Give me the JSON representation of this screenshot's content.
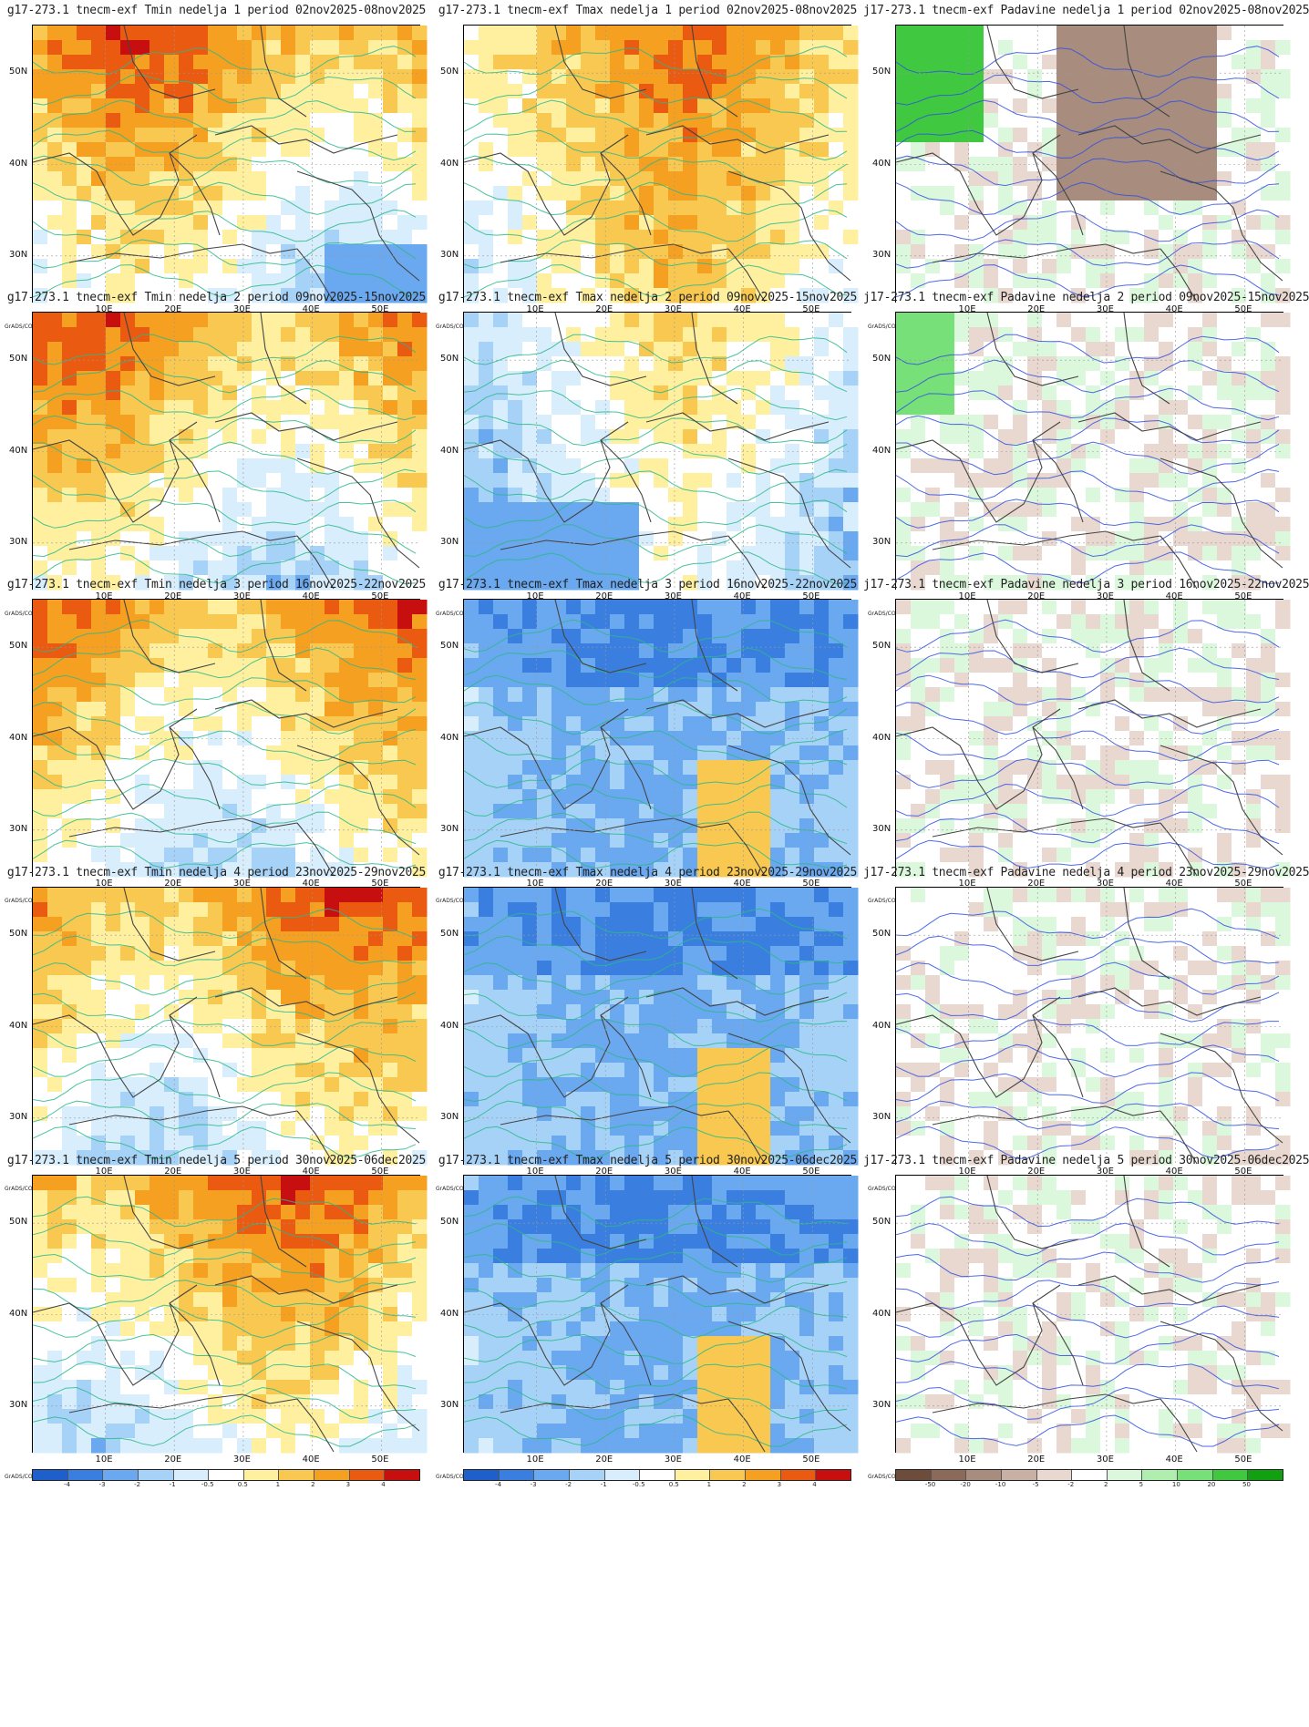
{
  "row_titles": {
    "tmin": [
      "g17-273.1 tnecm-exf Tmin nedelja 1 period 02nov2025-08nov2025",
      "g17-273.1 tnecm-exf Tmin nedelja 2 period 09nov2025-15nov2025",
      "g17-273.1 tnecm-exf Tmin nedelja 3 period 16nov2025-22nov2025",
      "g17-273.1 tnecm-exf Tmin nedelja 4 period 23nov2025-29nov2025",
      "g17-273.1 tnecm-exf Tmin nedelja 5 period 30nov2025-06dec2025"
    ],
    "tmax": [
      "g17-273.1 tnecm-exf Tmax nedelja 1 period 02nov2025-08nov2025",
      "g17-273.1 tnecm-exf Tmax nedelja 2 period 09nov2025-15nov2025",
      "g17-273.1 tnecm-exf Tmax nedelja 3 period 16nov2025-22nov2025",
      "g17-273.1 tnecm-exf Tmax nedelja 4 period 23nov2025-29nov2025",
      "g17-273.1 tnecm-exf Tmax nedelja 5 period 30nov2025-06dec2025"
    ],
    "precip": [
      "j17-273.1 tnecm-exf Padavine nedelja 1 period 02nov2025-08nov2025",
      "j17-273.1 tnecm-exf Padavine nedelja 2 period 09nov2025-15nov2025",
      "j17-273.1 tnecm-exf Padavine nedelja 3 period 16nov2025-22nov2025",
      "j17-273.1 tnecm-exf Padavine nedelja 4 period 23nov2025-29nov2025",
      "j17-273.1 tnecm-exf Padavine nedelja 5 period 30nov2025-06dec2025"
    ]
  },
  "axes": {
    "lon_labels": [
      "10E",
      "20E",
      "30E",
      "40E",
      "50E"
    ],
    "lat_labels": [
      "50N",
      "40N",
      "30N"
    ]
  },
  "credit": "GrADS/COLA",
  "colorbars": {
    "temperature": {
      "labels": [
        "-4",
        "-3",
        "-2",
        "-1",
        "-0.5",
        "0.5",
        "1",
        "2",
        "3",
        "4"
      ],
      "colors": [
        "#1e5fcc",
        "#3a7fe0",
        "#6aa8f0",
        "#a7d2f7",
        "#d9eefc",
        "#ffffff",
        "#fff0a0",
        "#f8c850",
        "#f5a020",
        "#ea5a10",
        "#c80f0f"
      ]
    },
    "precip": {
      "labels": [
        "-50",
        "-20",
        "-10",
        "-5",
        "-2",
        "2",
        "5",
        "10",
        "20",
        "50"
      ],
      "colors": [
        "#6e4c3c",
        "#8c6a5a",
        "#a88c7e",
        "#c8b0a4",
        "#e8d8d0",
        "#ffffff",
        "#dcf8dc",
        "#b0eeb0",
        "#78e078",
        "#40c840",
        "#10a010"
      ]
    }
  },
  "map_style": {
    "map_fill_levels": [
      [
        "tmin",
        "tmax",
        "precip"
      ],
      [
        "tmin",
        "tmax",
        "precip"
      ],
      [
        "tmin",
        "tmax",
        "precip"
      ],
      [
        "tmin",
        "tmax",
        "precip"
      ],
      [
        "tmin",
        "tmax",
        "precip"
      ]
    ],
    "tmin_contour_color": "#2ab88a",
    "tmax_contour_color": "#2ab88a",
    "precip_contour_color": "#3050e0",
    "boundary_color": "#444444"
  }
}
